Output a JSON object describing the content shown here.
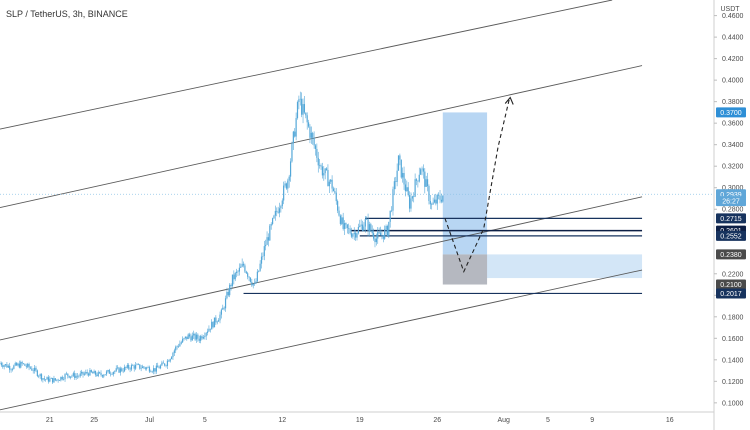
{
  "header": {
    "title": "SLP / TetherUS, 3h, BINANCE"
  },
  "chart_data": {
    "type": "candlestick",
    "currency_label": "USDT",
    "yticks": [
      "0.4600",
      "0.4400",
      "0.4200",
      "0.4000",
      "0.3800",
      "0.3600",
      "0.3400",
      "0.3200",
      "0.3000",
      "0.2800",
      "0.2200",
      "0.2000",
      "0.1800",
      "0.1600",
      "0.1400",
      "0.1200",
      "0.1000"
    ],
    "xticks": [
      {
        "label": "21",
        "day": 21
      },
      {
        "label": "25",
        "day": 25
      },
      {
        "label": "Jul",
        "day": 30
      },
      {
        "label": "5",
        "day": 35
      },
      {
        "label": "12",
        "day": 42
      },
      {
        "label": "19",
        "day": 49
      },
      {
        "label": "26",
        "day": 56
      },
      {
        "label": "Aug",
        "day": 62
      },
      {
        "label": "5",
        "day": 66
      },
      {
        "label": "9",
        "day": 70
      },
      {
        "label": "16",
        "day": 77
      }
    ],
    "ylim": [
      0.0915,
      0.4745
    ],
    "xlim": [
      16.5,
      81
    ],
    "price_tags": [
      {
        "label": "0.3700",
        "value": 0.37,
        "bg": "#2e8fd6"
      },
      {
        "label": "0.2939",
        "value": 0.2939,
        "bg": "#5fa6d8"
      },
      {
        "label": "26:27",
        "value": 0.2875,
        "bg": "#5fa6d8"
      },
      {
        "label": "0.2715",
        "value": 0.2715,
        "bg": "#17335e"
      },
      {
        "label": "0.2601",
        "value": 0.2601,
        "bg": "#0d1f45"
      },
      {
        "label": "0.2552",
        "value": 0.2552,
        "bg": "#17335e"
      },
      {
        "label": "0.2380",
        "value": 0.238,
        "bg": "#4a4a4a"
      },
      {
        "label": "0.2100",
        "value": 0.21,
        "bg": "#4a4a4a"
      },
      {
        "label": "0.2017",
        "value": 0.2017,
        "bg": "#17335e"
      }
    ],
    "price_series": [
      [
        16.5,
        0.137
      ],
      [
        17.5,
        0.133
      ],
      [
        18.5,
        0.136
      ],
      [
        19.5,
        0.131
      ],
      [
        20.5,
        0.122
      ],
      [
        21.5,
        0.121
      ],
      [
        22.5,
        0.126
      ],
      [
        23.5,
        0.125
      ],
      [
        24.5,
        0.128
      ],
      [
        25.5,
        0.126
      ],
      [
        26.5,
        0.129
      ],
      [
        27.5,
        0.131
      ],
      [
        28.5,
        0.134
      ],
      [
        29.5,
        0.133
      ],
      [
        30.5,
        0.131
      ],
      [
        31.5,
        0.137
      ],
      [
        32.5,
        0.153
      ],
      [
        33.5,
        0.162
      ],
      [
        34.5,
        0.16
      ],
      [
        35.5,
        0.171
      ],
      [
        36.5,
        0.183
      ],
      [
        37.5,
        0.215
      ],
      [
        38.5,
        0.228
      ],
      [
        39.5,
        0.208
      ],
      [
        40.5,
        0.248
      ],
      [
        41.5,
        0.278
      ],
      [
        42.5,
        0.308
      ],
      [
        43.5,
        0.382
      ],
      [
        44.5,
        0.352
      ],
      [
        45.5,
        0.318
      ],
      [
        46.5,
        0.302
      ],
      [
        47.5,
        0.262
      ],
      [
        48.5,
        0.258
      ],
      [
        49.5,
        0.268
      ],
      [
        50.5,
        0.253
      ],
      [
        51.5,
        0.26
      ],
      [
        52.5,
        0.325
      ],
      [
        53.5,
        0.285
      ],
      [
        54.5,
        0.32
      ],
      [
        55.5,
        0.283
      ],
      [
        56.5,
        0.293
      ]
    ],
    "channels": [
      {
        "p1": [
          16.5,
          0.3545
        ],
        "p2": [
          71.8,
          0.4745
        ],
        "color": "#5a5a5a"
      },
      {
        "p1": [
          16.5,
          0.2815
        ],
        "p2": [
          74.5,
          0.4135
        ],
        "color": "#5a5a5a"
      },
      {
        "p1": [
          16.5,
          0.1585
        ],
        "p2": [
          74.5,
          0.2915
        ],
        "color": "#5a5a5a"
      },
      {
        "p1": [
          16.5,
          0.0935
        ],
        "p2": [
          74.5,
          0.2235
        ],
        "color": "#5a5a5a"
      }
    ],
    "levels": [
      {
        "value": 0.2715,
        "from": 49.5,
        "to": 74.5,
        "color": "#17335e",
        "width": 1.2
      },
      {
        "value": 0.2601,
        "from": 48.2,
        "to": 74.5,
        "color": "#0d1f45",
        "width": 1.5
      },
      {
        "value": 0.2552,
        "from": 49.0,
        "to": 74.5,
        "color": "#17335e",
        "width": 1.2
      },
      {
        "value": 0.2017,
        "from": 38.5,
        "to": 74.5,
        "color": "#17335e",
        "width": 1.2
      }
    ],
    "target_box": {
      "x0": 56.5,
      "x1": 60.5,
      "y0": 0.238,
      "y1": 0.37,
      "color": "#b8d6f3"
    },
    "stop_box": {
      "x0": 56.5,
      "x1": 60.5,
      "y0": 0.21,
      "y1": 0.238,
      "color": "#b5b8c0"
    },
    "zone_box": {
      "x0": 56.5,
      "x1": 74.5,
      "y0": 0.216,
      "y1": 0.238,
      "color": "#d3e6f7"
    },
    "projection": [
      [
        56.7,
        0.2715
      ],
      [
        58.4,
        0.222
      ],
      [
        60.2,
        0.262
      ],
      [
        61.5,
        0.338
      ],
      [
        62.5,
        0.382
      ]
    ],
    "colors": {
      "candle": "#53a7d8",
      "axis_text": "#4a4a4a",
      "grid": "#e6e6e6"
    }
  }
}
